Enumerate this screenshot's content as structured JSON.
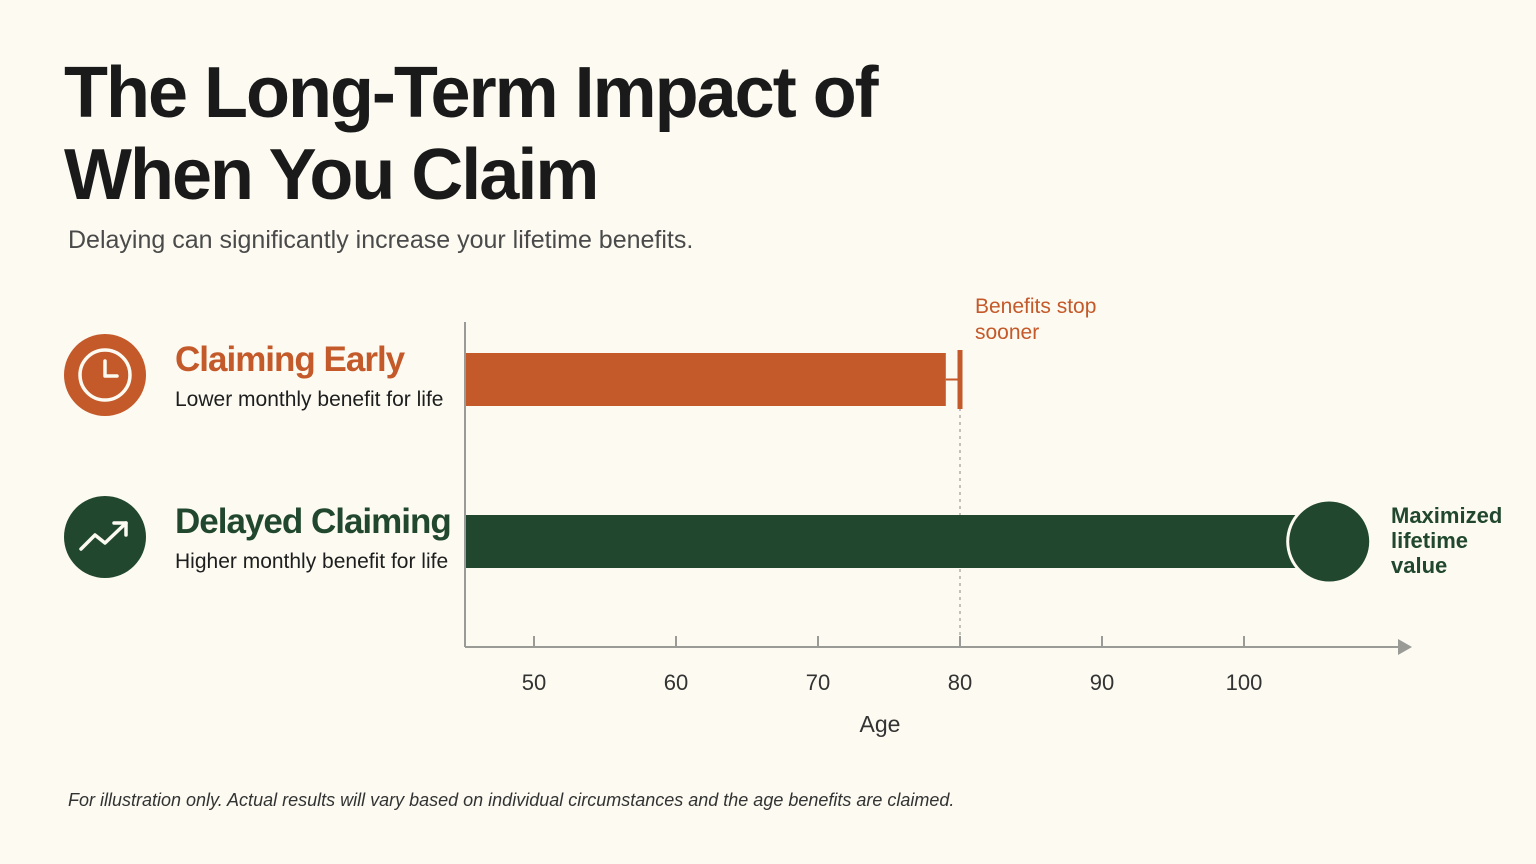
{
  "header": {
    "title": "The Long-Term Impact of When You Claim",
    "subtitle": "Delaying can significantly increase your lifetime benefits."
  },
  "colors": {
    "early": "#c4592a",
    "delayed": "#21482f",
    "axis": "#9a9a96",
    "background": "#fcfaf1"
  },
  "legend": [
    {
      "label": "Claiming Early",
      "description": "Lower monthly benefit for life",
      "icon": "clock-icon",
      "color": "#c4592a"
    },
    {
      "label": "Delayed Claiming",
      "description": "Higher monthly benefit for life",
      "icon": "trending-up-icon",
      "color": "#21482f"
    }
  ],
  "chart_data": {
    "type": "bar",
    "orientation": "horizontal",
    "xlabel": "Age",
    "x_ticks": [
      50,
      60,
      70,
      80,
      90,
      100
    ],
    "series": [
      {
        "name": "Claiming Early",
        "end_age": 79,
        "color": "#c4592a"
      },
      {
        "name": "Delayed Claiming",
        "end_age": 105,
        "color": "#21482f"
      }
    ],
    "annotations": [
      {
        "text": "Benefits stop sooner",
        "lines": [
          "Benefits stop",
          "sooner"
        ],
        "at_age": 80,
        "color": "#c4592a"
      },
      {
        "text": "Maximized lifetime value",
        "lines": [
          "Maximized",
          "lifetime",
          "value"
        ],
        "at_age": 106,
        "color": "#21482f"
      }
    ],
    "reference_line_age": 80,
    "grid": false
  },
  "footnote": "For illustration only. Actual results will vary based on individual circumstances and the age benefits are claimed."
}
